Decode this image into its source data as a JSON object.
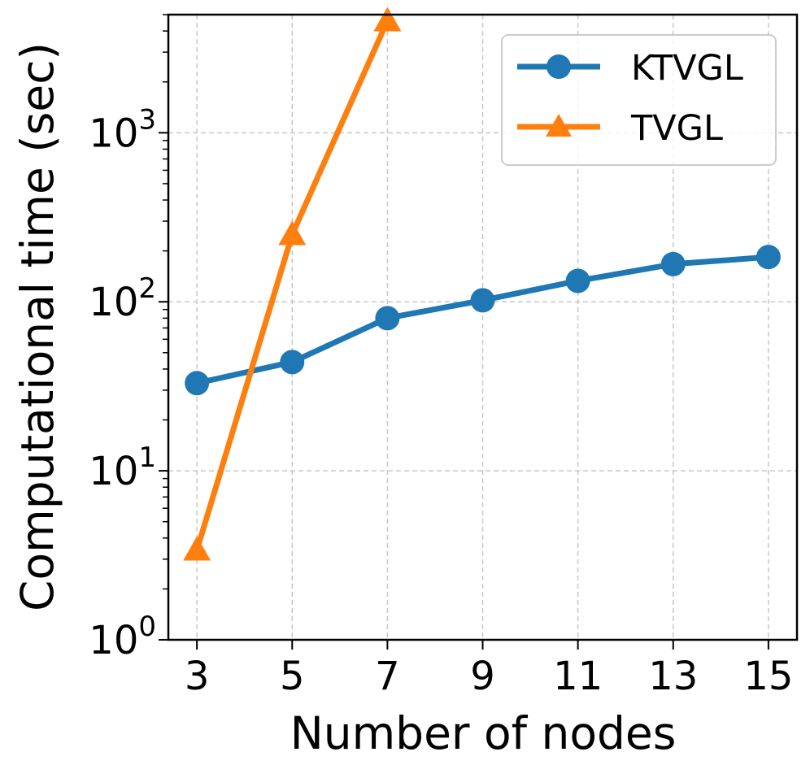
{
  "chart_data": {
    "type": "line",
    "title": "",
    "xlabel": "Number of nodes",
    "ylabel": "Computational time (sec)",
    "yscale": "log",
    "ylim": [
      1,
      5000
    ],
    "xlim": [
      2.4,
      15.6
    ],
    "grid": true,
    "legend_position": "top-right",
    "x_ticks": [
      3,
      5,
      7,
      9,
      11,
      13,
      15
    ],
    "x_tick_labels": [
      "3",
      "5",
      "7",
      "9",
      "11",
      "13",
      "15"
    ],
    "y_ticks": [
      1,
      10,
      100,
      1000
    ],
    "y_tick_labels": [
      {
        "base": "10",
        "exp": "0"
      },
      {
        "base": "10",
        "exp": "1"
      },
      {
        "base": "10",
        "exp": "2"
      },
      {
        "base": "10",
        "exp": "3"
      }
    ],
    "series": [
      {
        "name": "KTVGL",
        "color": "#1f77b4",
        "marker": "circle",
        "x": [
          3,
          5,
          7,
          9,
          11,
          13,
          15
        ],
        "values": [
          33,
          44,
          80,
          102,
          133,
          167,
          184
        ]
      },
      {
        "name": "TVGL",
        "color": "#ff7f0e",
        "marker": "triangle",
        "x": [
          3,
          5,
          7
        ],
        "values": [
          3.4,
          250,
          4600
        ]
      }
    ]
  }
}
